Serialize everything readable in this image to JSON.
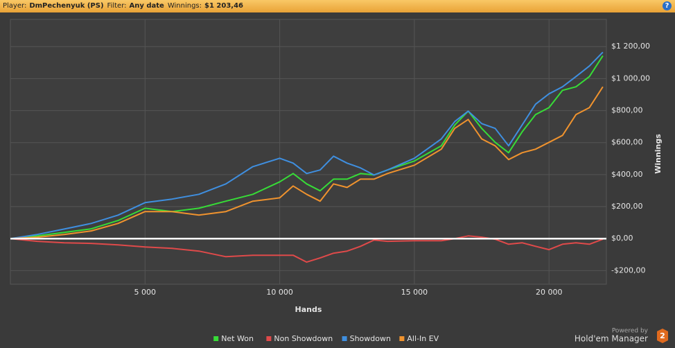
{
  "header": {
    "player_label": "Player:",
    "player": "DmPechenyuk (PS)",
    "filter_label": "Filter:",
    "filter": "Any date",
    "winnings_label": "Winnings:",
    "winnings": "$1 203,46",
    "help": "?"
  },
  "branding": {
    "powered_by": "Powered by",
    "product": "Hold'em Manager",
    "version": "2"
  },
  "chart_data": {
    "type": "line",
    "xlabel": "Hands",
    "ylabel": "Winnings",
    "x": [
      0,
      1000,
      2000,
      3000,
      4000,
      5000,
      6000,
      7000,
      8000,
      9000,
      10000,
      10500,
      11000,
      11500,
      12000,
      12500,
      13000,
      13500,
      14000,
      15000,
      16000,
      16500,
      17000,
      17500,
      18000,
      18500,
      19000,
      19500,
      20000,
      20500,
      21000,
      21500,
      22000
    ],
    "series": [
      {
        "name": "Net Won",
        "color": "#37dc37",
        "values": [
          0,
          17,
          39,
          61,
          113,
          190,
          169,
          190,
          234,
          277,
          355,
          407,
          342,
          299,
          372,
          372,
          407,
          398,
          429,
          485,
          580,
          710,
          797,
          689,
          602,
          537,
          667,
          775,
          819,
          927,
          949,
          1013,
          1143
        ]
      },
      {
        "name": "Non Showdown",
        "color": "#e04a4a",
        "values": [
          0,
          -17,
          -26,
          -30,
          -39,
          -52,
          -61,
          -78,
          -113,
          -104,
          -104,
          -104,
          -147,
          -121,
          -91,
          -78,
          -48,
          -9,
          -17,
          -13,
          -13,
          0,
          17,
          9,
          -4,
          -35,
          -26,
          -48,
          -69,
          -35,
          -26,
          -35,
          -4
        ]
      },
      {
        "name": "Showdown",
        "color": "#3f8fe0",
        "values": [
          0,
          26,
          60,
          95,
          147,
          225,
          247,
          277,
          342,
          450,
          502,
          472,
          407,
          429,
          515,
          472,
          442,
          398,
          429,
          502,
          623,
          732,
          797,
          719,
          689,
          580,
          710,
          840,
          905,
          949,
          1013,
          1079,
          1165
        ]
      },
      {
        "name": "All-In EV",
        "color": "#f0932e",
        "values": [
          0,
          9,
          26,
          48,
          95,
          169,
          169,
          147,
          169,
          234,
          255,
          329,
          277,
          234,
          342,
          320,
          372,
          372,
          407,
          459,
          559,
          689,
          745,
          623,
          580,
          494,
          537,
          559,
          602,
          645,
          775,
          819,
          949
        ]
      }
    ],
    "xlim": [
      0,
      22130
    ],
    "ylim": [
      -285,
      1370
    ],
    "xticks": [
      {
        "value": 5000,
        "label": "5 000"
      },
      {
        "value": 10000,
        "label": "10 000"
      },
      {
        "value": 15000,
        "label": "15 000"
      },
      {
        "value": 20000,
        "label": "20 000"
      }
    ],
    "yticks": [
      {
        "value": -200,
        "label": "-$200,00"
      },
      {
        "value": 0,
        "label": "$0,00"
      },
      {
        "value": 200,
        "label": "$200,00"
      },
      {
        "value": 400,
        "label": "$400,00"
      },
      {
        "value": 600,
        "label": "$600,00"
      },
      {
        "value": 800,
        "label": "$800,00"
      },
      {
        "value": 1000,
        "label": "$1 000,00"
      },
      {
        "value": 1200,
        "label": "$1 200,00"
      }
    ],
    "grid": true,
    "zero_line": true,
    "legend": "bottom"
  }
}
